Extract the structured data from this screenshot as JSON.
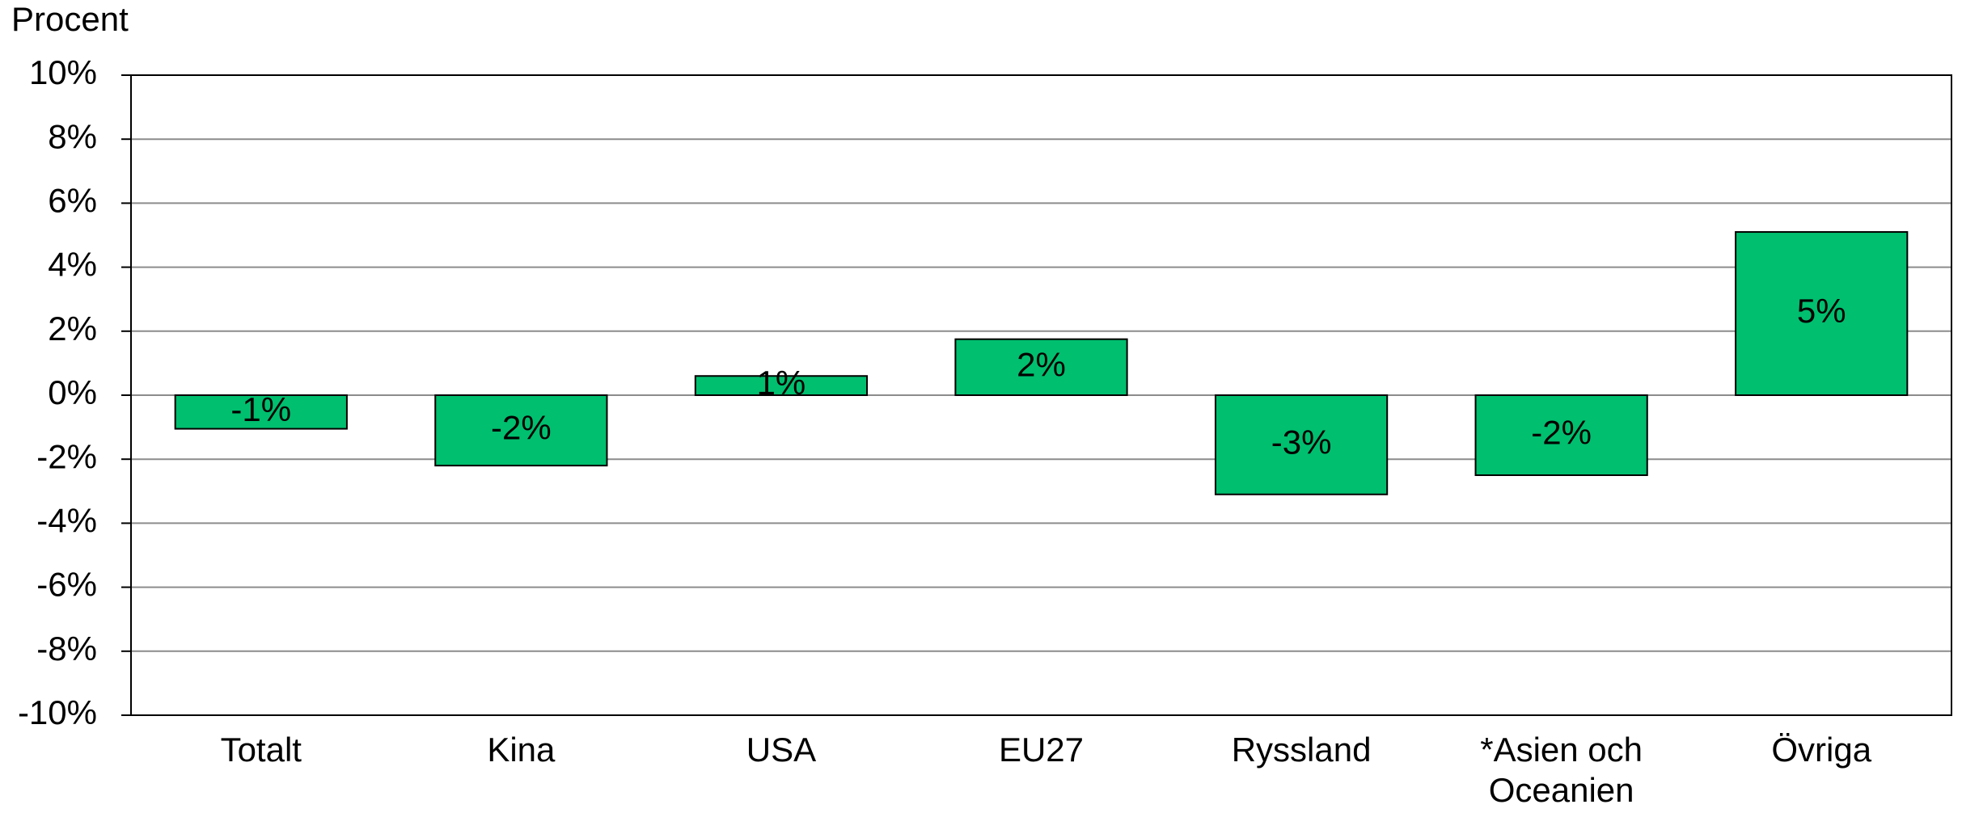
{
  "chart_data": {
    "type": "bar",
    "y_axis_label": "Procent",
    "categories": [
      "Totalt",
      "Kina",
      "USA",
      "EU27",
      "Ryssland",
      "*Asien och Oceanien",
      "Övriga"
    ],
    "values": [
      -1.05,
      -2.2,
      0.6,
      1.75,
      -3.1,
      -2.5,
      5.1
    ],
    "value_labels": [
      "-1%",
      "-2%",
      "1%",
      "2%",
      "-3%",
      "-2%",
      "5%"
    ],
    "color": "#00bf6f",
    "ylim": [
      -10,
      10
    ],
    "yticks": [
      {
        "value": -10,
        "label": "-10%"
      },
      {
        "value": -8,
        "label": "-8%"
      },
      {
        "value": -6,
        "label": "-6%"
      },
      {
        "value": -4,
        "label": "-4%"
      },
      {
        "value": -2,
        "label": "-2%"
      },
      {
        "value": 0,
        "label": "0%"
      },
      {
        "value": 2,
        "label": "2%"
      },
      {
        "value": 4,
        "label": "4%"
      },
      {
        "value": 6,
        "label": "6%"
      },
      {
        "value": 8,
        "label": "8%"
      },
      {
        "value": 10,
        "label": "10%"
      }
    ],
    "grid": true
  }
}
